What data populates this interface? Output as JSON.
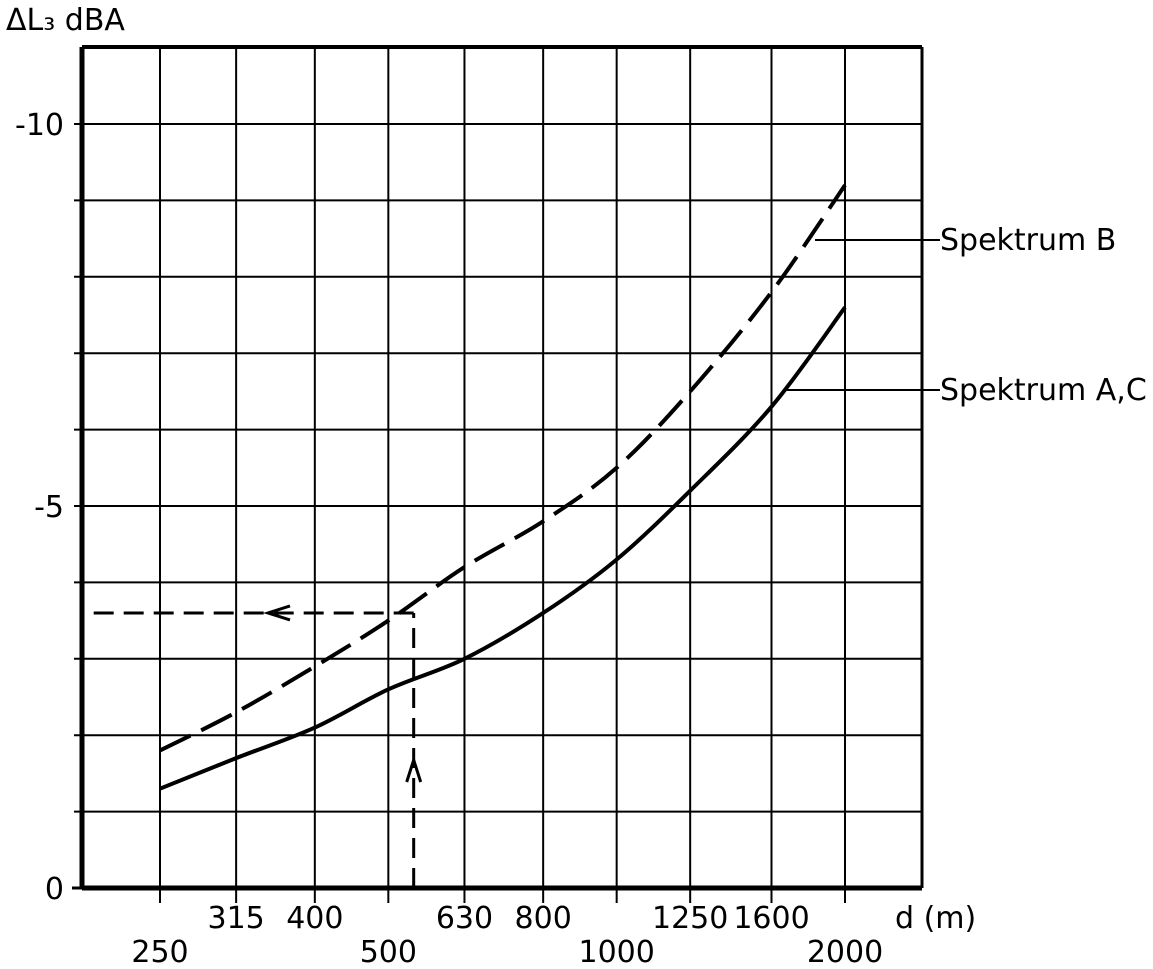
{
  "chart_data": {
    "type": "line",
    "ylabel": "ΔL₃ dBA",
    "xlabel": "d (m)",
    "x_scale": "log",
    "y_inverted": true,
    "xlim": [
      250,
      2000
    ],
    "ylim": [
      0,
      -10
    ],
    "x_ticks_upper": [
      "315",
      "400",
      "630",
      "800",
      "1250",
      "1600"
    ],
    "x_ticks_lower": [
      "250",
      "500",
      "1000",
      "2000"
    ],
    "y_ticks": [
      "-10",
      "-5",
      "0"
    ],
    "grid": true,
    "series": [
      {
        "name": "Spektrum B",
        "style": "dashed",
        "color": "#000000",
        "x": [
          250,
          315,
          400,
          500,
          630,
          800,
          1000,
          1250,
          1600,
          2000
        ],
        "y": [
          -1.8,
          -2.3,
          -2.9,
          -3.5,
          -4.2,
          -4.8,
          -5.5,
          -6.5,
          -7.8,
          -9.2
        ]
      },
      {
        "name": "Spektrum A,C",
        "style": "solid",
        "color": "#000000",
        "x": [
          250,
          315,
          400,
          500,
          630,
          800,
          1000,
          1250,
          1600,
          2000
        ],
        "y": [
          -1.3,
          -1.7,
          -2.1,
          -2.6,
          -3.0,
          -3.6,
          -4.3,
          -5.2,
          -6.3,
          -7.6
        ]
      }
    ],
    "reading_example": {
      "x": 540,
      "y": -3.6,
      "style": "dashed-arrows"
    }
  }
}
